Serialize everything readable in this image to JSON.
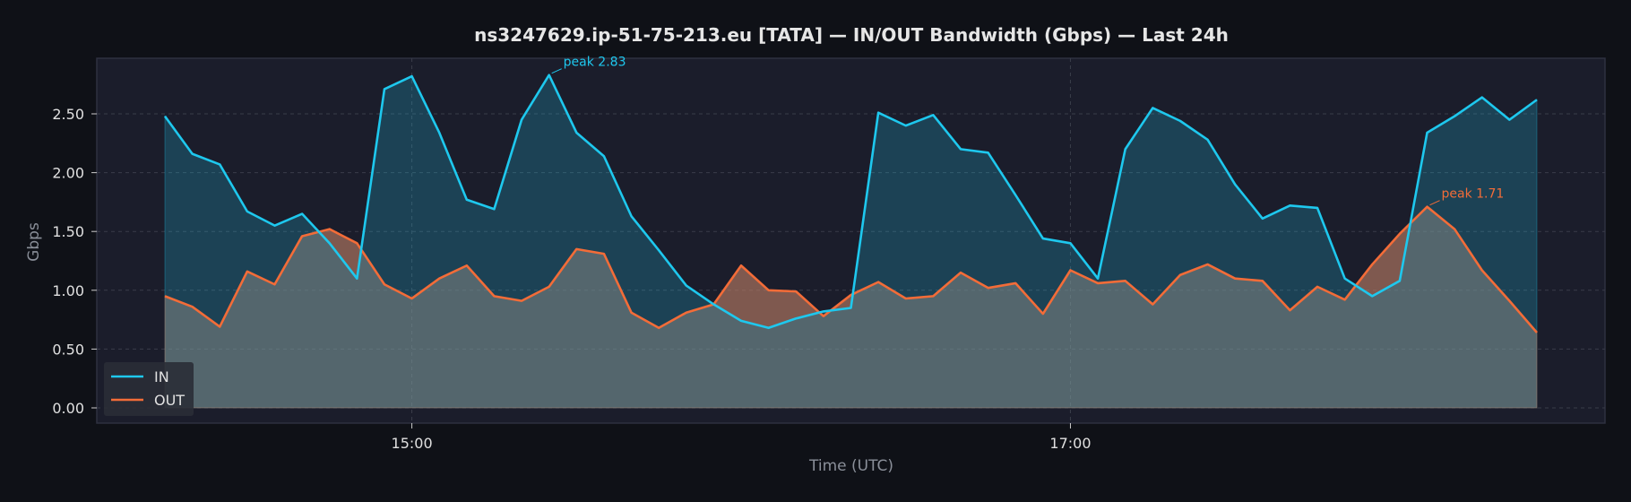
{
  "chart_data": {
    "type": "area",
    "title": "ns3247629.ip-51-75-213.eu [TATA] — IN/OUT Bandwidth (Gbps) — Last 24h",
    "xlabel": "Time (UTC)",
    "ylabel": "Gbps",
    "ylim": [
      -0.14,
      2.98
    ],
    "y_ticks": [
      "0.00",
      "0.50",
      "1.00",
      "1.50",
      "2.00",
      "2.50"
    ],
    "x_ticks": [
      {
        "label": "15:00",
        "index": 9
      },
      {
        "label": "17:00",
        "index": 33
      }
    ],
    "grid": true,
    "legend_position": "lower-left",
    "colors": {
      "in": "#1ec8ee",
      "out": "#f36c38"
    },
    "series": [
      {
        "name": "IN",
        "values": [
          2.48,
          2.16,
          2.07,
          1.67,
          1.55,
          1.65,
          1.4,
          1.1,
          2.71,
          2.82,
          2.34,
          1.77,
          1.69,
          2.45,
          2.83,
          2.34,
          2.14,
          1.63,
          1.34,
          1.04,
          0.88,
          0.74,
          0.68,
          0.76,
          0.82,
          0.85,
          2.51,
          2.4,
          2.49,
          2.2,
          2.17,
          1.81,
          1.44,
          1.4,
          1.1,
          2.2,
          2.55,
          2.44,
          2.28,
          1.9,
          1.61,
          1.72,
          1.7,
          1.1,
          0.95,
          1.08,
          2.34,
          2.48,
          2.64,
          2.45,
          2.62
        ]
      },
      {
        "name": "OUT",
        "values": [
          0.95,
          0.86,
          0.69,
          1.16,
          1.05,
          1.46,
          1.52,
          1.4,
          1.05,
          0.93,
          1.1,
          1.21,
          0.95,
          0.91,
          1.03,
          1.35,
          1.31,
          0.81,
          0.68,
          0.81,
          0.88,
          1.21,
          1.0,
          0.99,
          0.78,
          0.96,
          1.07,
          0.93,
          0.95,
          1.15,
          1.02,
          1.06,
          0.8,
          1.17,
          1.06,
          1.08,
          0.88,
          1.13,
          1.22,
          1.1,
          1.08,
          0.83,
          1.03,
          0.92,
          1.22,
          1.48,
          1.71,
          1.52,
          1.17,
          0.91,
          0.64
        ]
      }
    ],
    "annotations": [
      {
        "text": "peak 2.83",
        "series": "IN",
        "index": 14
      },
      {
        "text": "peak 1.71",
        "series": "OUT",
        "index": 46
      }
    ]
  }
}
